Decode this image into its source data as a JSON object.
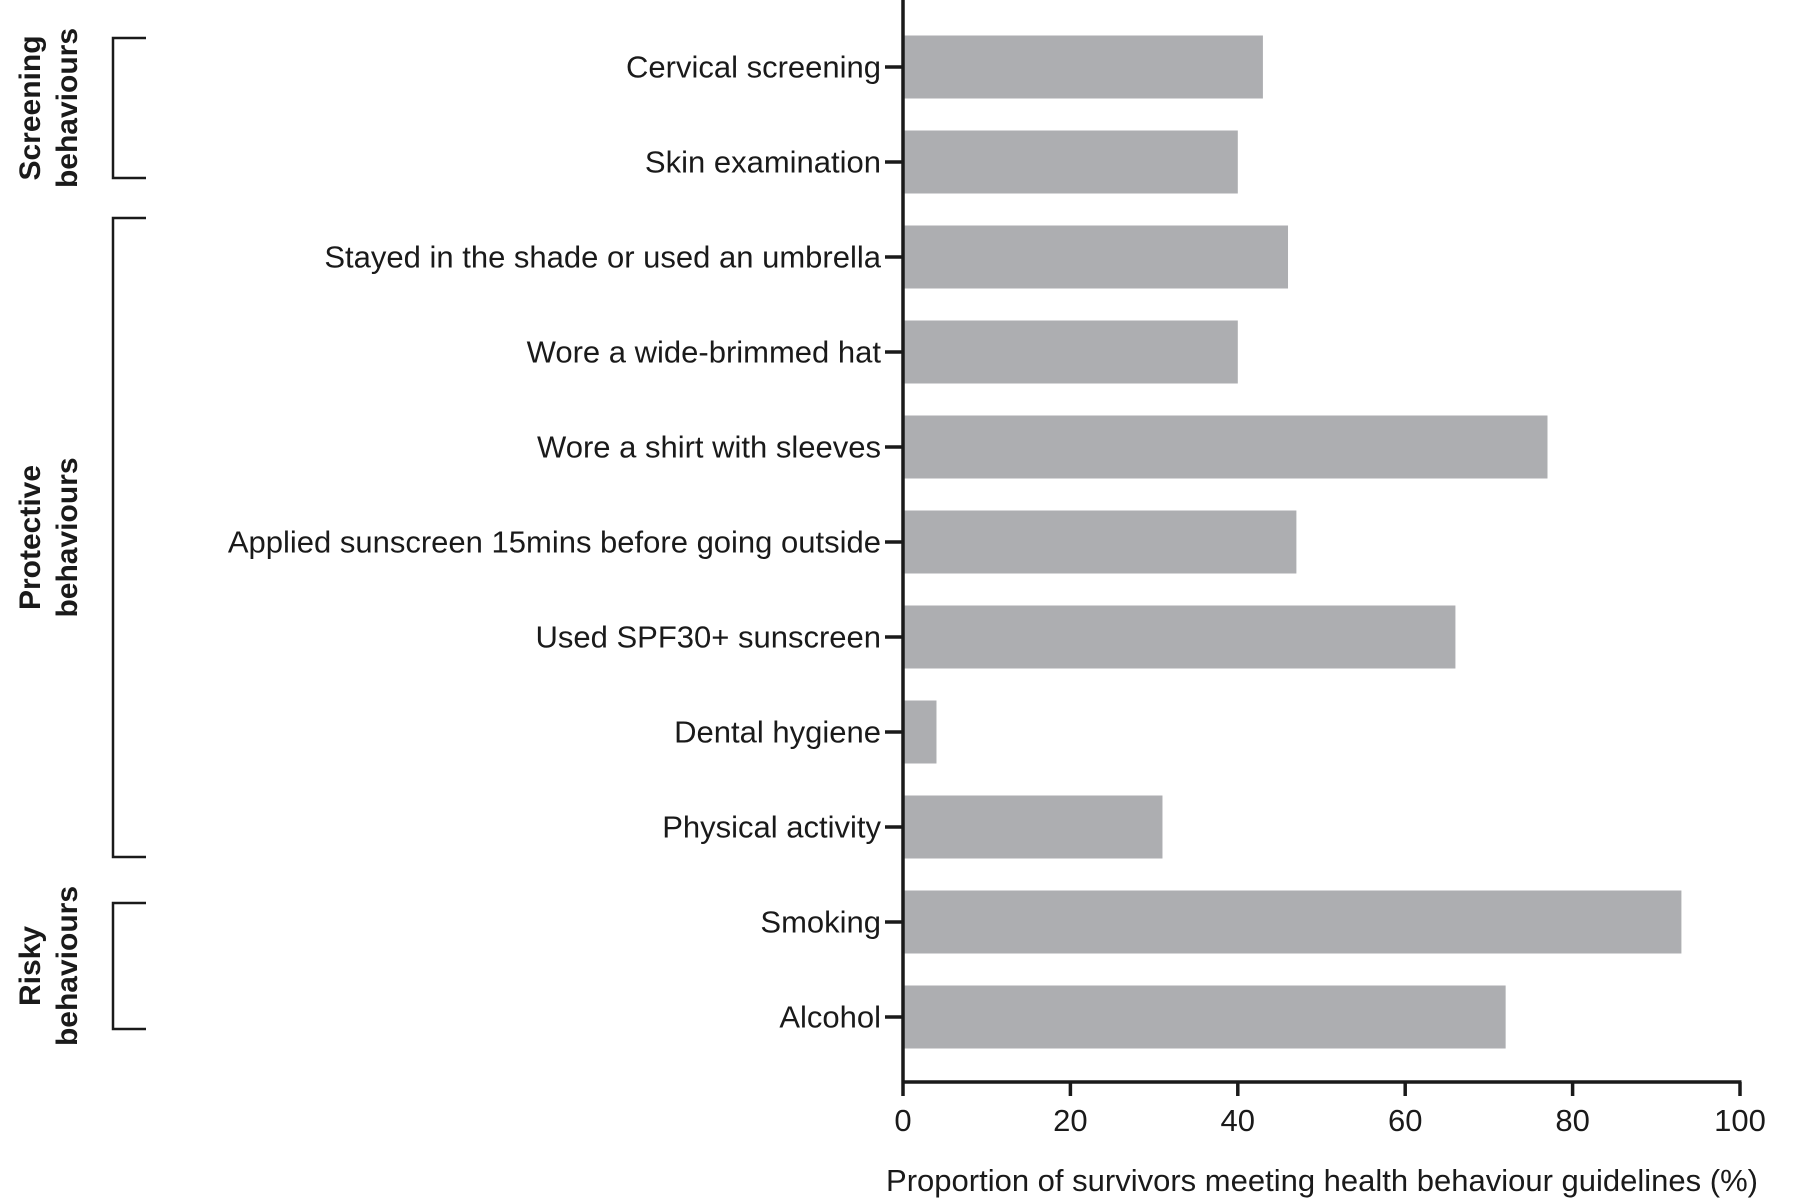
{
  "chart_data": {
    "type": "bar",
    "orientation": "horizontal",
    "categories": [
      "Cervical screening",
      "Skin examination",
      "Stayed in the shade or used an umbrella",
      "Wore a wide-brimmed hat",
      "Wore a shirt with sleeves",
      "Applied sunscreen 15mins before going outside",
      "Used SPF30+ sunscreen",
      "Dental hygiene",
      "Physical activity",
      "Smoking",
      "Alcohol"
    ],
    "values": [
      43,
      40,
      46,
      40,
      77,
      47,
      66,
      4,
      31,
      93,
      72
    ],
    "xlabel": "Proportion of survivors meeting health behaviour guidelines (%)",
    "ylabel": "",
    "xlim": [
      0,
      100
    ],
    "xticks": [
      0,
      20,
      40,
      60,
      80,
      100
    ],
    "grid": false,
    "bar_color": "#adaeb1",
    "groups": [
      {
        "label_lines": [
          "Screening",
          "behaviours"
        ],
        "first": 0,
        "last": 1
      },
      {
        "label_lines": [
          "Protective",
          "behaviours"
        ],
        "first": 2,
        "last": 8
      },
      {
        "label_lines": [
          "Risky",
          "behaviours"
        ],
        "first": 9,
        "last": 10
      }
    ]
  }
}
